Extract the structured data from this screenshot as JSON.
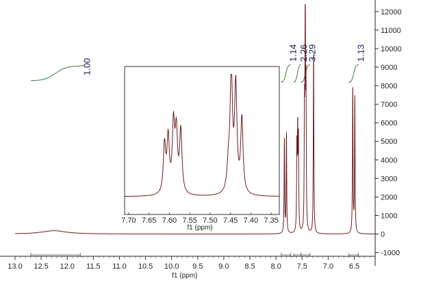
{
  "chart_data": [
    {
      "type": "line",
      "xlabel": "f1 (ppm)",
      "xlim": [
        13.0,
        6.1
      ],
      "ylim": [
        -1200,
        12400
      ],
      "x_ticks": [
        13.0,
        12.5,
        12.0,
        11.5,
        11.0,
        10.5,
        10.0,
        9.5,
        9.0,
        8.5,
        8.0,
        7.5,
        7.0,
        6.5
      ],
      "x_tick_labels": [
        "13.0",
        "12.5",
        "12.0",
        "11.5",
        "11.0",
        "10.5",
        "10.0",
        "9.5",
        "9.0",
        "8.5",
        "8.0",
        "7.5",
        "7.0",
        "6.5"
      ],
      "y_ticks": [
        -1000,
        0,
        1000,
        2000,
        3000,
        4000,
        5000,
        6000,
        7000,
        8000,
        9000,
        10000,
        11000,
        12000
      ],
      "y_tick_labels": [
        "-1000",
        "0",
        "1000",
        "2000",
        "3000",
        "4000",
        "5000",
        "6000",
        "7000",
        "8000",
        "9000",
        "10000",
        "11000",
        "12000"
      ],
      "series": [
        {
          "peaks": [
            {
              "ppm": 12.25,
              "height": 180,
              "width": 0.28
            },
            {
              "ppm": 7.84,
              "height": 5100,
              "width": 0.006
            },
            {
              "ppm": 7.8,
              "height": 5500,
              "width": 0.006
            },
            {
              "ppm": 7.6,
              "height": 4500,
              "width": 0.006
            },
            {
              "ppm": 7.585,
              "height": 5200,
              "width": 0.006
            },
            {
              "ppm": 7.57,
              "height": 4900,
              "width": 0.006
            },
            {
              "ppm": 7.455,
              "height": 6000,
              "width": 0.006
            },
            {
              "ppm": 7.44,
              "height": 12400,
              "width": 0.006
            },
            {
              "ppm": 7.425,
              "height": 7100,
              "width": 0.006
            },
            {
              "ppm": 7.28,
              "height": 10100,
              "width": 0.006
            },
            {
              "ppm": 6.53,
              "height": 8100,
              "width": 0.006
            },
            {
              "ppm": 6.49,
              "height": 7500,
              "width": 0.006
            }
          ]
        }
      ],
      "integrals": [
        {
          "label": "1.00",
          "from": 12.7,
          "to": 11.75
        },
        {
          "label": "1.14",
          "from": 7.9,
          "to": 7.72
        },
        {
          "label": "2.26",
          "from": 7.66,
          "to": 7.52
        },
        {
          "label": "3.29",
          "from": 7.52,
          "to": 7.35
        },
        {
          "label": "1.13",
          "from": 6.6,
          "to": 6.42
        }
      ],
      "color": "#6b1a1a",
      "integral_color": "#3a7a3a"
    },
    {
      "type": "line",
      "xlabel": "f1 (ppm)",
      "xlim": [
        7.71,
        7.33
      ],
      "x_ticks": [
        7.7,
        7.65,
        7.6,
        7.55,
        7.5,
        7.45,
        7.4,
        7.35
      ],
      "x_tick_labels": [
        "7.70",
        "7.65",
        "7.60",
        "7.55",
        "7.50",
        "7.45",
        "7.40",
        "7.35"
      ],
      "series": [
        {
          "peaks": [
            {
              "ppm": 7.612,
              "height": 0.4,
              "width": 0.0035
            },
            {
              "ppm": 7.603,
              "height": 0.45,
              "width": 0.0035
            },
            {
              "ppm": 7.59,
              "height": 0.55,
              "width": 0.0035
            },
            {
              "ppm": 7.583,
              "height": 0.48,
              "width": 0.0035
            },
            {
              "ppm": 7.572,
              "height": 0.52,
              "width": 0.0035
            },
            {
              "ppm": 7.448,
              "height": 1.0,
              "width": 0.0035
            },
            {
              "ppm": 7.437,
              "height": 0.88,
              "width": 0.0035
            },
            {
              "ppm": 7.422,
              "height": 0.62,
              "width": 0.0035
            },
            {
              "ppm": 7.455,
              "height": 0.2,
              "width": 0.004
            }
          ]
        }
      ],
      "color": "#6b1a1a"
    }
  ]
}
